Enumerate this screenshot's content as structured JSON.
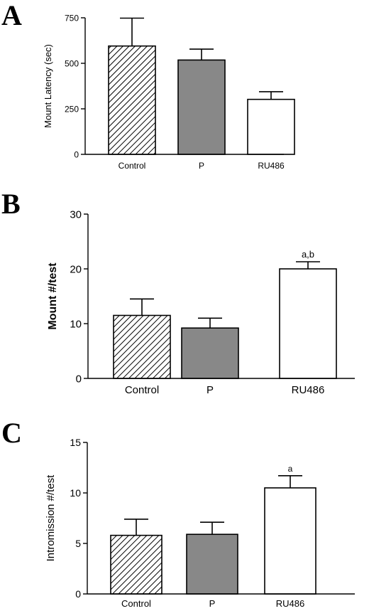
{
  "chart_data": [
    {
      "panel": "A",
      "type": "bar",
      "categories": [
        "Control",
        "P",
        "RU486"
      ],
      "values": [
        595,
        518,
        302
      ],
      "errors": [
        153,
        60,
        42
      ],
      "ylabel": "Mount Latency (sec)",
      "ylim": [
        0,
        750
      ],
      "yticks": [
        "0",
        "250",
        "500",
        "750"
      ],
      "annotations": [
        "",
        "",
        ""
      ]
    },
    {
      "panel": "B",
      "type": "bar",
      "categories": [
        "Control",
        "P",
        "RU486"
      ],
      "values": [
        11.5,
        9.2,
        20.0
      ],
      "errors": [
        3.0,
        1.8,
        1.3
      ],
      "ylabel": "Mount #/test",
      "ylim": [
        0,
        30
      ],
      "yticks": [
        "0",
        "10",
        "20",
        "30"
      ],
      "annotations": [
        "",
        "",
        "a,b"
      ]
    },
    {
      "panel": "C",
      "type": "bar",
      "categories": [
        "Control",
        "P",
        "RU486"
      ],
      "values": [
        5.8,
        5.9,
        10.5
      ],
      "errors": [
        1.6,
        1.2,
        1.2
      ],
      "ylabel": "Intromission #/test",
      "ylim": [
        0,
        15
      ],
      "yticks": [
        "0",
        "5",
        "10",
        "15"
      ],
      "annotations": [
        "",
        "",
        "a"
      ]
    }
  ],
  "style": {
    "bar_fills": [
      "hatch",
      "#888888",
      "#ffffff"
    ],
    "stroke": "#000000"
  }
}
